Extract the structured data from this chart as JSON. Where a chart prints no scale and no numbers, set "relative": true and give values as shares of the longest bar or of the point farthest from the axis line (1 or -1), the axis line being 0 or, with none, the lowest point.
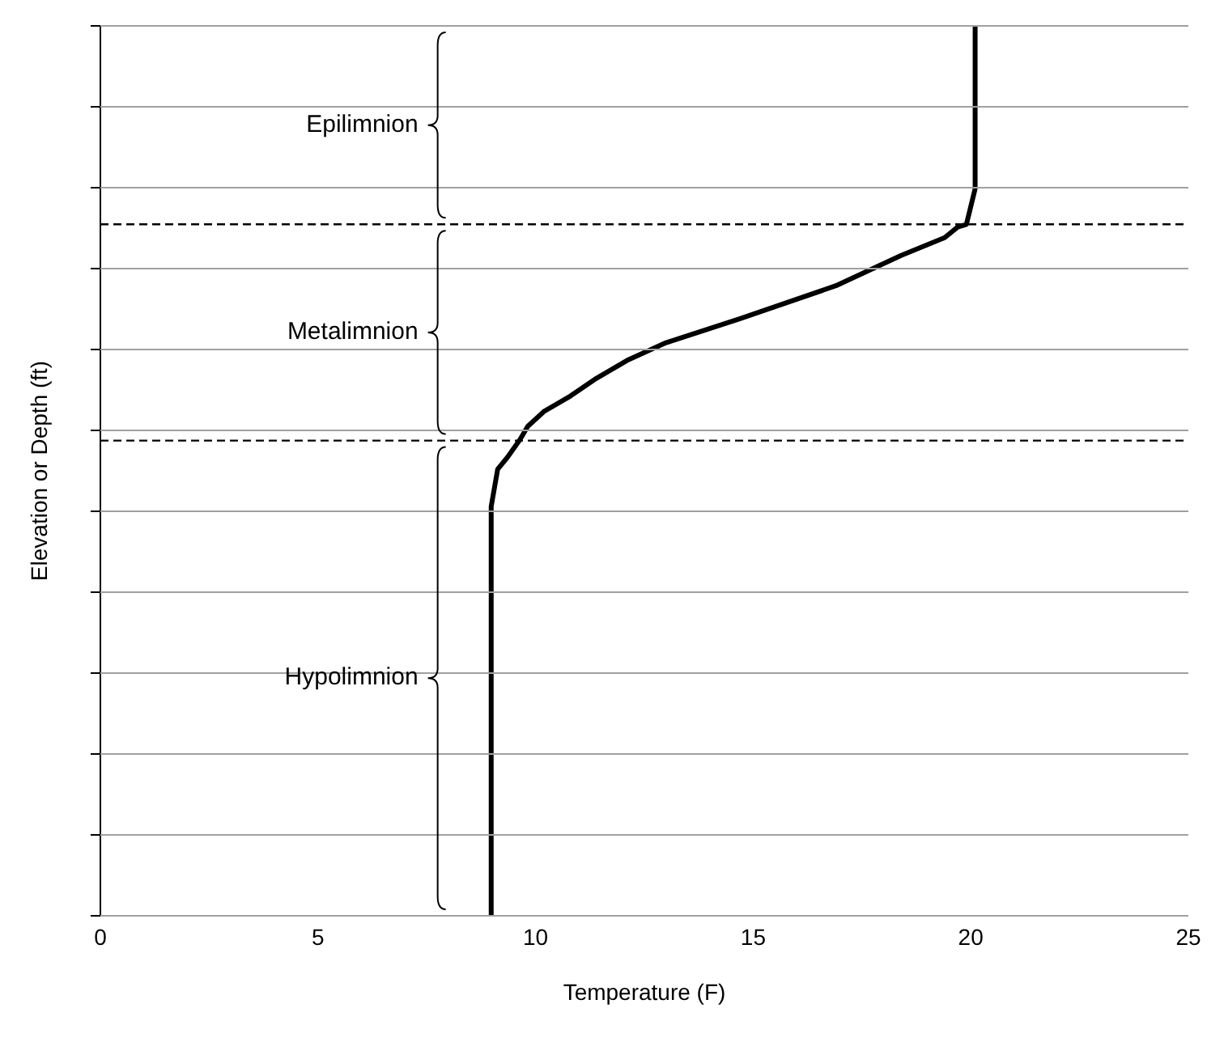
{
  "chart_data": {
    "type": "line",
    "relative": true,
    "xlabel": "Temperature (F)",
    "ylabel": "Elevation or Depth (ft)",
    "xlim": [
      0,
      25
    ],
    "xticks": [
      0,
      5,
      10,
      15,
      20,
      25
    ],
    "tick_labels": "x",
    "grid": "y",
    "marker": "none",
    "line_style": "solid",
    "series": [
      {
        "color": "#000000",
        "x": [
          8.98,
          8.98,
          9.13,
          9.35,
          9.64,
          9.82,
          10.2,
          10.8,
          11.4,
          12.1,
          13.0,
          14.7,
          16.9,
          18.4,
          19.4,
          19.7,
          19.9,
          20.1,
          20.1
        ],
        "values": [
          0,
          0.46,
          0.502,
          0.515,
          0.535,
          0.55,
          0.567,
          0.584,
          0.604,
          0.624,
          0.644,
          0.671,
          0.708,
          0.742,
          0.762,
          0.774,
          0.777,
          0.817,
          1
        ]
      }
    ],
    "ref_lines": [
      {
        "axis": "y",
        "value": 0.777,
        "color": "#000000",
        "line_style": "dashed"
      },
      {
        "axis": "y",
        "value": 0.534,
        "color": "#000000",
        "line_style": "dashed"
      }
    ],
    "annotations": [
      "Epilimnion",
      "Metalimnion",
      "Hypolimnion"
    ]
  }
}
